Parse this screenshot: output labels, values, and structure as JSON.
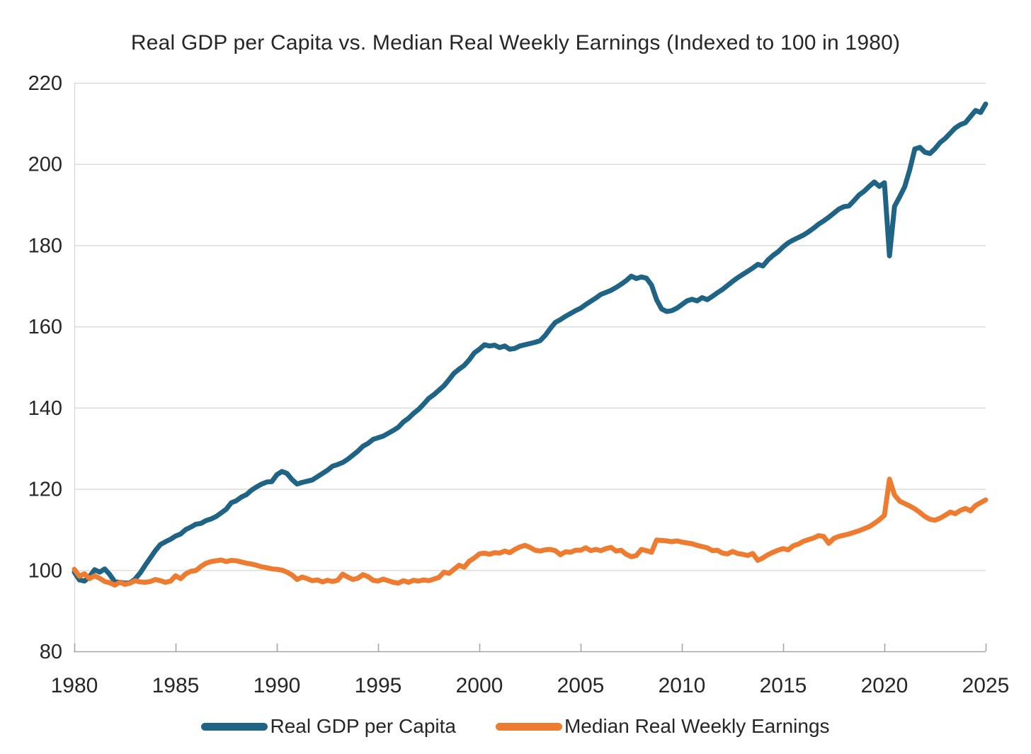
{
  "chart_data": {
    "type": "line",
    "title": "Real GDP per Capita vs. Median Real Weekly Earnings (Indexed to 100 in 1980)",
    "xlabel": "",
    "ylabel": "",
    "x_start": 1980,
    "x_step": 0.25,
    "x_end": 2025,
    "xlim": [
      1980,
      2025
    ],
    "ylim": [
      80,
      220
    ],
    "y_ticks": [
      80,
      100,
      120,
      140,
      160,
      180,
      200,
      220
    ],
    "x_ticks": [
      1980,
      1985,
      1990,
      1995,
      2000,
      2005,
      2010,
      2015,
      2020,
      2025
    ],
    "grid": true,
    "legend_position": "bottom",
    "colors": {
      "gdp_line": "#1F6484",
      "earnings_line": "#ED7C30",
      "gridline": "#D9D9D9",
      "axis_line": "#A6A6A6",
      "text": "#262626",
      "background": "#FFFFFF"
    },
    "series": [
      {
        "name": "Real GDP per Capita",
        "color": "#1F6484",
        "values": [
          99.5,
          97.6,
          97.3,
          98.4,
          100.1,
          99.5,
          100.3,
          98.9,
          97.1,
          97.0,
          96.8,
          96.9,
          97.8,
          99.3,
          101.2,
          103.0,
          104.8,
          106.3,
          107.0,
          107.6,
          108.4,
          108.9,
          110.0,
          110.6,
          111.3,
          111.5,
          112.2,
          112.6,
          113.2,
          114.1,
          115.0,
          116.6,
          117.1,
          118.0,
          118.6,
          119.7,
          120.5,
          121.2,
          121.7,
          121.8,
          123.5,
          124.3,
          123.8,
          122.3,
          121.2,
          121.6,
          121.9,
          122.2,
          123.0,
          123.8,
          124.6,
          125.6,
          126.0,
          126.5,
          127.3,
          128.3,
          129.3,
          130.5,
          131.2,
          132.2,
          132.6,
          133.0,
          133.7,
          134.4,
          135.2,
          136.5,
          137.4,
          138.6,
          139.6,
          140.9,
          142.3,
          143.2,
          144.3,
          145.4,
          146.9,
          148.5,
          149.5,
          150.4,
          151.8,
          153.5,
          154.4,
          155.5,
          155.2,
          155.4,
          154.8,
          155.2,
          154.4,
          154.6,
          155.2,
          155.5,
          155.8,
          156.1,
          156.5,
          157.8,
          159.5,
          161.0,
          161.7,
          162.5,
          163.2,
          163.9,
          164.5,
          165.4,
          166.2,
          167.0,
          167.9,
          168.4,
          168.9,
          169.6,
          170.4,
          171.3,
          172.4,
          171.8,
          172.2,
          171.9,
          170.2,
          166.6,
          164.3,
          163.7,
          163.9,
          164.5,
          165.4,
          166.3,
          166.7,
          166.3,
          167.1,
          166.6,
          167.4,
          168.3,
          169.1,
          170.1,
          171.1,
          172.0,
          172.8,
          173.6,
          174.4,
          175.3,
          174.9,
          176.4,
          177.5,
          178.4,
          179.6,
          180.6,
          181.3,
          181.9,
          182.5,
          183.3,
          184.2,
          185.2,
          186.0,
          186.9,
          187.9,
          188.9,
          189.5,
          189.7,
          191.0,
          192.4,
          193.3,
          194.5,
          195.6,
          194.5,
          195.4,
          177.4,
          189.6,
          191.9,
          194.4,
          198.6,
          203.7,
          204.1,
          202.9,
          202.6,
          203.8,
          205.3,
          206.3,
          207.6,
          208.9,
          209.7,
          210.2,
          211.7,
          213.2,
          212.7,
          214.8
        ]
      },
      {
        "name": "Median Real Weekly Earnings",
        "color": "#ED7C30",
        "values": [
          100.2,
          98.5,
          99.1,
          97.9,
          98.6,
          98.0,
          97.2,
          96.9,
          96.3,
          97.0,
          96.5,
          96.8,
          97.4,
          97.1,
          97.0,
          97.2,
          97.7,
          97.4,
          97.0,
          97.3,
          98.6,
          97.9,
          99.1,
          99.7,
          99.9,
          100.9,
          101.7,
          102.1,
          102.3,
          102.5,
          102.1,
          102.4,
          102.3,
          102.0,
          101.7,
          101.5,
          101.2,
          100.8,
          100.6,
          100.3,
          100.2,
          100.0,
          99.5,
          98.8,
          97.7,
          98.3,
          97.9,
          97.4,
          97.6,
          97.1,
          97.5,
          97.2,
          97.5,
          99.0,
          98.3,
          97.7,
          98.0,
          98.9,
          98.4,
          97.5,
          97.3,
          97.8,
          97.4,
          97.0,
          96.8,
          97.4,
          97.0,
          97.5,
          97.3,
          97.6,
          97.4,
          97.8,
          98.2,
          99.5,
          99.2,
          100.2,
          101.2,
          100.7,
          102.2,
          103.0,
          104.0,
          104.2,
          103.9,
          104.3,
          104.2,
          104.7,
          104.3,
          105.1,
          105.7,
          106.1,
          105.6,
          104.9,
          104.7,
          105.0,
          105.1,
          104.8,
          103.8,
          104.5,
          104.4,
          104.9,
          104.9,
          105.5,
          104.8,
          105.1,
          104.8,
          105.3,
          105.6,
          104.7,
          104.9,
          103.9,
          103.3,
          103.6,
          105.1,
          104.8,
          104.4,
          107.4,
          107.3,
          107.2,
          107.0,
          107.2,
          106.9,
          106.7,
          106.5,
          106.1,
          105.8,
          105.5,
          104.8,
          104.9,
          104.2,
          104.0,
          104.6,
          104.1,
          103.9,
          103.6,
          104.1,
          102.4,
          103.0,
          103.8,
          104.4,
          104.9,
          105.3,
          105.0,
          106.0,
          106.4,
          107.1,
          107.5,
          107.9,
          108.5,
          108.3,
          106.6,
          107.8,
          108.3,
          108.6,
          108.9,
          109.3,
          109.7,
          110.2,
          110.7,
          111.5,
          112.4,
          113.5,
          122.4,
          118.5,
          117.0,
          116.4,
          115.8,
          115.1,
          114.2,
          113.2,
          112.5,
          112.3,
          112.8,
          113.5,
          114.3,
          113.9,
          114.7,
          115.2,
          114.6,
          115.9,
          116.6,
          117.3
        ]
      }
    ]
  }
}
